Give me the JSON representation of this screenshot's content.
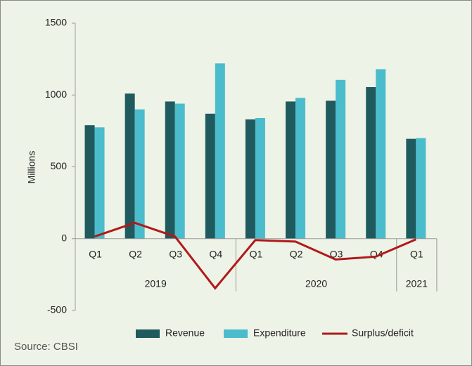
{
  "chart_data": {
    "type": "bar_line",
    "y_label": "Millions",
    "source": "Source: CBSI",
    "groups": [
      {
        "label": "2019",
        "categories": [
          "Q1",
          "Q2",
          "Q3",
          "Q4"
        ]
      },
      {
        "label": "2020",
        "categories": [
          "Q1",
          "Q2",
          "Q3",
          "Q4"
        ]
      },
      {
        "label": "2021",
        "categories": [
          "Q1"
        ]
      }
    ],
    "series": [
      {
        "name": "Revenue",
        "type": "bar",
        "color": "#1e5a5e",
        "values": [
          790,
          1010,
          955,
          870,
          830,
          955,
          960,
          1055,
          695
        ]
      },
      {
        "name": "Expenditure",
        "type": "bar",
        "color": "#4bbccc",
        "values": [
          775,
          900,
          940,
          1220,
          840,
          980,
          1105,
          1180,
          700
        ]
      },
      {
        "name": "Surplus/deficit",
        "type": "line",
        "color": "#b01a1a",
        "values": [
          15,
          110,
          15,
          -345,
          -10,
          -20,
          -145,
          -125,
          -5
        ]
      }
    ],
    "ylim": [
      -500,
      1500
    ],
    "yticks": [
      -500,
      0,
      500,
      1000,
      1500
    ],
    "grid": false
  }
}
